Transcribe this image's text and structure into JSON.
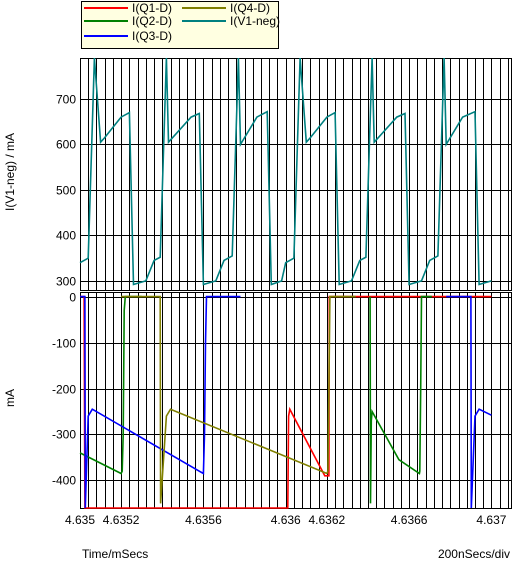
{
  "chart_data": [
    {
      "type": "line",
      "ylabel": "I(V1-neg) / mA",
      "ylim": [
        280,
        790
      ],
      "yticks": [
        300,
        400,
        500,
        600,
        700
      ],
      "grid": true,
      "series": [
        {
          "name": "I(V1-neg)",
          "color": "#008080",
          "x": [
            4.635,
            4.63504,
            4.63507,
            4.6351,
            4.63512,
            4.6352,
            4.63524,
            4.63526,
            4.63532,
            4.63536,
            4.63539,
            4.63542,
            4.63543,
            4.63554,
            4.63558,
            4.6356,
            4.63566,
            4.6357,
            4.63574,
            4.63577,
            4.63578,
            4.63586,
            4.63591,
            4.63593,
            4.63598,
            4.636,
            4.63604,
            4.63607,
            4.6361,
            4.63612,
            4.6362,
            4.63624,
            4.63626,
            4.63632,
            4.63636,
            4.63639,
            4.63642,
            4.63643,
            4.63654,
            4.63658,
            4.6366,
            4.63666,
            4.6367,
            4.63674,
            4.63677,
            4.63678,
            4.63686,
            4.63692,
            4.63694,
            4.637
          ],
          "values": [
            340,
            350,
            790,
            605,
            615,
            660,
            670,
            292,
            300,
            345,
            352,
            790,
            605,
            660,
            668,
            292,
            300,
            345,
            355,
            790,
            600,
            660,
            672,
            292,
            300,
            340,
            350,
            790,
            605,
            615,
            660,
            670,
            292,
            300,
            345,
            352,
            790,
            605,
            660,
            668,
            292,
            300,
            345,
            355,
            790,
            600,
            660,
            672,
            292,
            300
          ]
        }
      ]
    },
    {
      "type": "line",
      "ylabel": "mA",
      "ylim": [
        -460,
        10
      ],
      "yticks": [
        0,
        -100,
        -200,
        -300,
        -400
      ],
      "xlabel": "Time/mSecs",
      "x_tick_labels": [
        "4.635",
        "4.6352",
        "4.6356",
        "4.636",
        "4.6362",
        "4.6366",
        "4.637"
      ],
      "x_tick_values": [
        4.635,
        4.6352,
        4.6356,
        4.636,
        4.6362,
        4.6366,
        4.637
      ],
      "xlim": [
        4.635,
        4.6371
      ],
      "grid": true,
      "series": [
        {
          "name": "I(Q1-D)",
          "color": "#ff0000",
          "x": [
            4.635,
            4.63502,
            4.635024,
            4.636,
            4.63601,
            4.636014,
            4.63602,
            4.63619,
            4.6362,
            4.63621,
            4.636212,
            4.636213,
            4.63635,
            4.63636,
            4.63637,
            4.636372,
            4.63673,
            4.63674,
            4.63675,
            4.63687,
            4.63688,
            4.636882,
            4.637
          ],
          "values": [
            0,
            0,
            -460,
            -460,
            -460,
            -260,
            -245,
            -390,
            -390,
            -390,
            0,
            0,
            0,
            0,
            0,
            0,
            0,
            0,
            0,
            0,
            0,
            0,
            0
          ]
        },
        {
          "name": "I(Q2-D)",
          "color": "#008000",
          "x": [
            4.635,
            4.6352,
            4.63521,
            4.635212,
            4.63522,
            4.6353,
            4.63531,
            4.635312,
            4.6362,
            4.636201,
            4.636202,
            4.636203,
            4.6364,
            4.63641,
            4.636412,
            4.63642,
            4.63656,
            4.63657,
            4.636572,
            4.636573,
            4.63671,
            4.637
          ],
          "values": [
            -340,
            -385,
            -385,
            -300,
            -10,
            0,
            0,
            0,
            0,
            0,
            0,
            0,
            0,
            -450,
            -270,
            -250,
            -360,
            -385,
            -385,
            0,
            0,
            -370
          ],
          "segments": [
            [
              [
                4.635,
                -340
              ],
              [
                4.6352,
                -385
              ],
              [
                4.635205,
                -380
              ],
              [
                4.63521,
                -300
              ],
              [
                4.635215,
                -30
              ],
              [
                4.63522,
                0
              ],
              [
                4.6353,
                0
              ]
            ],
            [
              [
                4.63641,
                0
              ],
              [
                4.636412,
                -450
              ],
              [
                4.636416,
                -270
              ],
              [
                4.63642,
                -250
              ],
              [
                4.63655,
                -355
              ],
              [
                4.63665,
                -385
              ],
              [
                4.636652,
                -380
              ],
              [
                4.636656,
                -200
              ],
              [
                4.63666,
                0
              ],
              [
                4.63671,
                0
              ]
            ],
            [
              [
                4.637,
                -375
              ]
            ]
          ]
        },
        {
          "name": "I(Q3-D)",
          "color": "#0000ff",
          "x": [
            4.635,
            4.635024,
            4.63503,
            4.63505,
            4.6356,
            4.63561,
            4.635615,
            4.63562,
            4.63577,
            4.63581,
            4.636,
            4.6369,
            4.636902,
            4.63691,
            4.637
          ],
          "values": [
            0,
            -460,
            -260,
            -245,
            -385,
            -385,
            -200,
            0,
            0,
            0,
            0,
            0,
            -460,
            -255,
            -255
          ],
          "segments": [
            [
              [
                4.635,
                0
              ],
              [
                4.635024,
                0
              ],
              [
                4.635026,
                -460
              ],
              [
                4.63504,
                -260
              ],
              [
                4.63506,
                -245
              ],
              [
                4.63558,
                -380
              ],
              [
                4.6356,
                -385
              ],
              [
                4.635605,
                -300
              ],
              [
                4.63561,
                -100
              ],
              [
                4.635615,
                0
              ],
              [
                4.63578,
                0
              ]
            ],
            [
              [
                4.63678,
                0
              ],
              [
                4.6369,
                0
              ],
              [
                4.636902,
                -460
              ],
              [
                4.63692,
                -260
              ],
              [
                4.63694,
                -245
              ],
              [
                4.637,
                -258
              ]
            ]
          ]
        },
        {
          "name": "I(Q4-D)",
          "color": "#808000",
          "x": [
            4.6353,
            4.6354,
            4.635402,
            4.63542,
            4.63544,
            4.636,
            4.6362,
            4.63621,
            4.636215,
            4.63622,
            4.63632,
            4.636322,
            4.6364
          ],
          "values": [
            0,
            0,
            -450,
            -260,
            -245,
            -350,
            -385,
            -385,
            -200,
            0,
            0,
            0,
            0
          ],
          "segments": [
            [
              [
                4.6352,
                0
              ],
              [
                4.63539,
                0
              ],
              [
                4.635392,
                -450
              ],
              [
                4.63542,
                -260
              ],
              [
                4.63544,
                -245
              ],
              [
                4.6362,
                -385
              ],
              [
                4.636205,
                -380
              ],
              [
                4.63621,
                -200
              ],
              [
                4.636215,
                0
              ],
              [
                4.63634,
                0
              ]
            ]
          ]
        }
      ]
    }
  ],
  "legend": [
    {
      "label": "I(Q1-D)",
      "color": "#ff0000"
    },
    {
      "label": "I(Q4-D)",
      "color": "#808000"
    },
    {
      "label": "I(Q2-D)",
      "color": "#008000"
    },
    {
      "label": "I(V1-neg)",
      "color": "#008080"
    },
    {
      "label": "I(Q3-D)",
      "color": "#0000ff"
    }
  ],
  "footer": {
    "time_label": "Time/mSecs",
    "div_label": "200nSecs/div"
  }
}
